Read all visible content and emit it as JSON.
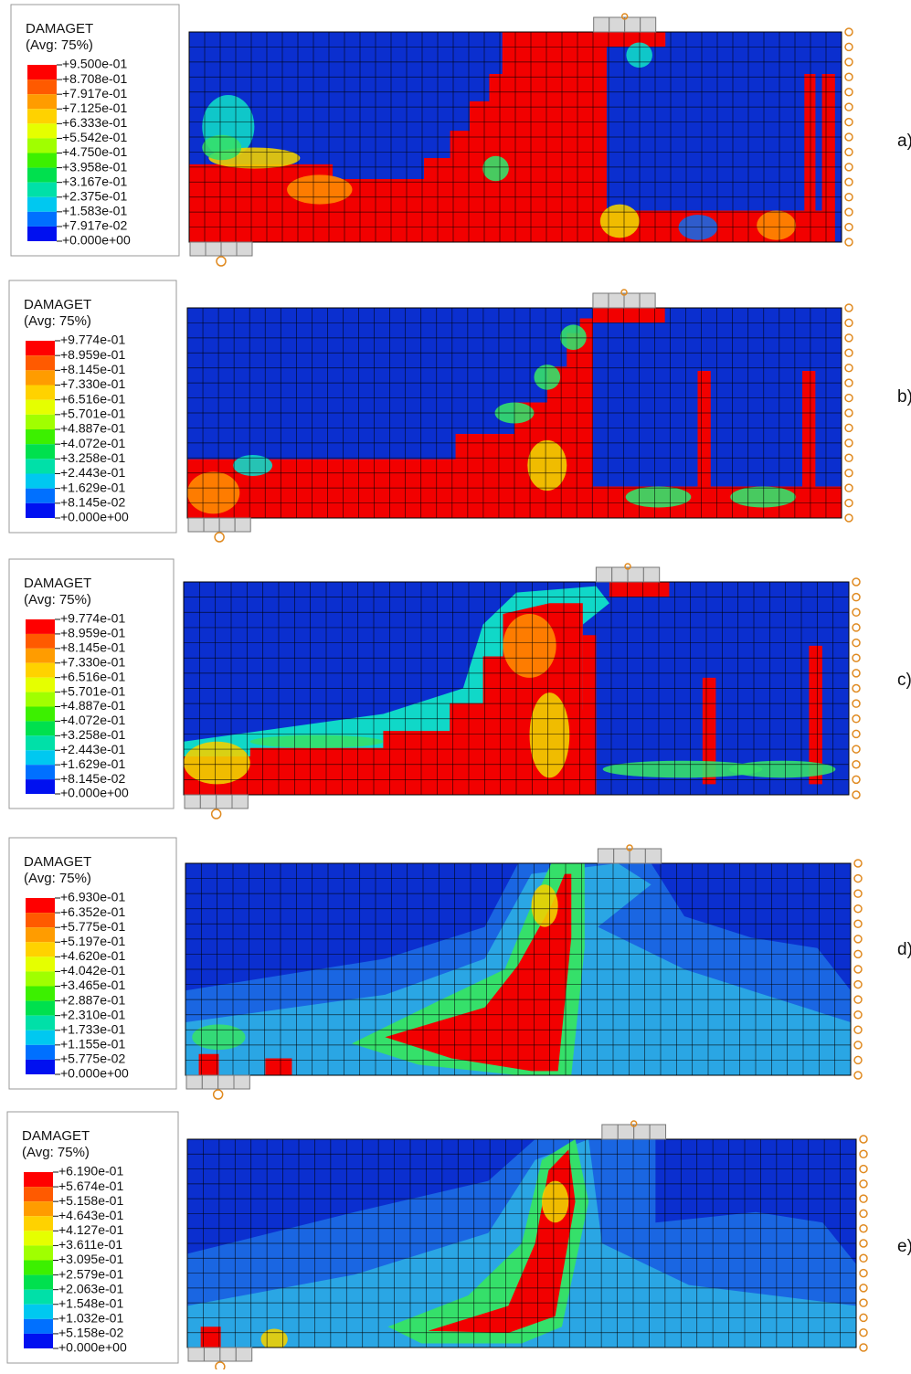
{
  "panels": [
    {
      "label": "a)",
      "legend": {
        "title": "DAMAGET",
        "subtitle": "(Avg: 75%)",
        "labels": [
          "+9.500e-01",
          "+8.708e-01",
          "+7.917e-01",
          "+7.125e-01",
          "+6.333e-01",
          "+5.542e-01",
          "+4.750e-01",
          "+3.958e-01",
          "+3.167e-01",
          "+2.375e-01",
          "+1.583e-01",
          "+7.917e-02",
          "+0.000e+00"
        ]
      }
    },
    {
      "label": "b)",
      "legend": {
        "title": "DAMAGET",
        "subtitle": "(Avg: 75%)",
        "labels": [
          "+9.774e-01",
          "+8.959e-01",
          "+8.145e-01",
          "+7.330e-01",
          "+6.516e-01",
          "+5.701e-01",
          "+4.887e-01",
          "+4.072e-01",
          "+3.258e-01",
          "+2.443e-01",
          "+1.629e-01",
          "+8.145e-02",
          "+0.000e+00"
        ]
      }
    },
    {
      "label": "c)",
      "legend": {
        "title": "DAMAGET",
        "subtitle": "(Avg: 75%)",
        "labels": [
          "+9.774e-01",
          "+8.959e-01",
          "+8.145e-01",
          "+7.330e-01",
          "+6.516e-01",
          "+5.701e-01",
          "+4.887e-01",
          "+4.072e-01",
          "+3.258e-01",
          "+2.443e-01",
          "+1.629e-01",
          "+8.145e-02",
          "+0.000e+00"
        ]
      }
    },
    {
      "label": "d)",
      "legend": {
        "title": "DAMAGET",
        "subtitle": "(Avg: 75%)",
        "labels": [
          "+6.930e-01",
          "+6.352e-01",
          "+5.775e-01",
          "+5.197e-01",
          "+4.620e-01",
          "+4.042e-01",
          "+3.465e-01",
          "+2.887e-01",
          "+2.310e-01",
          "+1.733e-01",
          "+1.155e-01",
          "+5.775e-02",
          "+0.000e+00"
        ]
      }
    },
    {
      "label": "e)",
      "legend": {
        "title": "DAMAGET",
        "subtitle": "(Avg: 75%)",
        "labels": [
          "+6.190e-01",
          "+5.674e-01",
          "+5.158e-01",
          "+4.643e-01",
          "+4.127e-01",
          "+3.611e-01",
          "+3.095e-01",
          "+2.579e-01",
          "+2.063e-01",
          "+1.548e-01",
          "+1.032e-01",
          "+5.158e-02",
          "+0.000e+00"
        ]
      }
    }
  ]
}
